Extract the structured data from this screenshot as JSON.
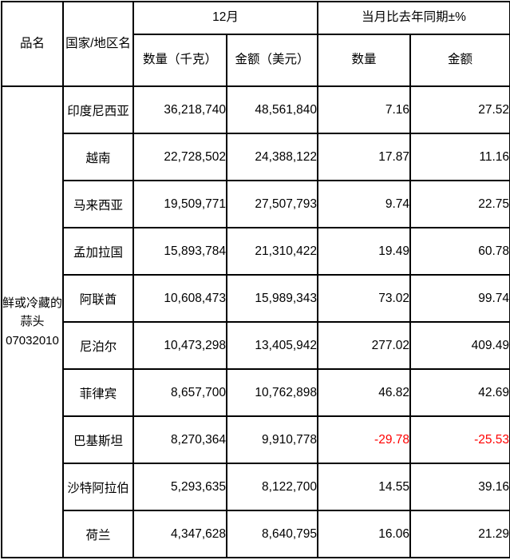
{
  "colors": {
    "border": "#000000",
    "text": "#000000",
    "negative": "#ff0000",
    "background": "#ffffff"
  },
  "table": {
    "header": {
      "product_col": "品名",
      "country_col": "国家/地区名",
      "month_group": "12月",
      "yoy_group": "当月比去年同期±%",
      "qty_kg": "数量（千克）",
      "amount_usd": "金额（美元）",
      "qty": "数量",
      "amount": "金额"
    },
    "product": {
      "name": "鲜或冷藏的蒜头",
      "code": "07032010"
    },
    "rows": [
      {
        "country": "印度尼西亚",
        "qty_kg": "36,218,740",
        "amount_usd": "48,561,840",
        "qty_pct": "7.16",
        "amount_pct": "27.52"
      },
      {
        "country": "越南",
        "qty_kg": "22,728,502",
        "amount_usd": "24,388,122",
        "qty_pct": "17.87",
        "amount_pct": "11.16"
      },
      {
        "country": "马来西亚",
        "qty_kg": "19,509,771",
        "amount_usd": "27,507,793",
        "qty_pct": "9.74",
        "amount_pct": "22.75"
      },
      {
        "country": "孟加拉国",
        "qty_kg": "15,893,784",
        "amount_usd": "21,310,422",
        "qty_pct": "19.49",
        "amount_pct": "60.78"
      },
      {
        "country": "阿联酋",
        "qty_kg": "10,608,473",
        "amount_usd": "15,989,343",
        "qty_pct": "73.02",
        "amount_pct": "99.74"
      },
      {
        "country": "尼泊尔",
        "qty_kg": "10,473,298",
        "amount_usd": "13,405,942",
        "qty_pct": "277.02",
        "amount_pct": "409.49"
      },
      {
        "country": "菲律宾",
        "qty_kg": "8,657,700",
        "amount_usd": "10,762,898",
        "qty_pct": "46.82",
        "amount_pct": "42.69"
      },
      {
        "country": "巴基斯坦",
        "qty_kg": "8,270,364",
        "amount_usd": "9,910,778",
        "qty_pct": "-29.78",
        "amount_pct": "-25.53"
      },
      {
        "country": "沙特阿拉伯",
        "qty_kg": "5,293,635",
        "amount_usd": "8,122,700",
        "qty_pct": "14.55",
        "amount_pct": "39.16"
      },
      {
        "country": "荷兰",
        "qty_kg": "4,347,628",
        "amount_usd": "8,640,795",
        "qty_pct": "16.06",
        "amount_pct": "21.29"
      }
    ]
  }
}
